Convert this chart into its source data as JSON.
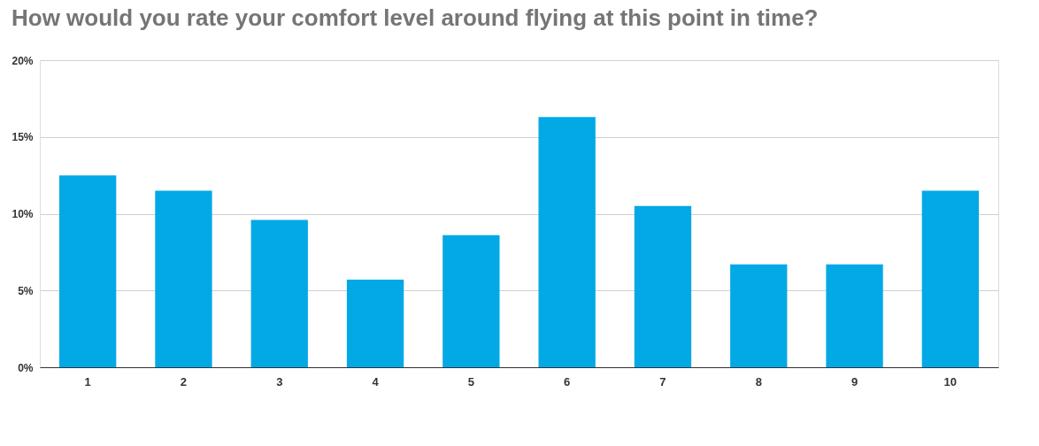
{
  "chart_data": {
    "type": "bar",
    "title": "How would you rate your comfort level around flying at this point in time?",
    "categories": [
      "1",
      "2",
      "3",
      "4",
      "5",
      "6",
      "7",
      "8",
      "9",
      "10"
    ],
    "values": [
      12.5,
      11.5,
      9.6,
      5.7,
      8.6,
      16.3,
      10.5,
      6.7,
      6.7,
      11.5
    ],
    "color": "#03a9e4",
    "ylim": [
      0,
      20
    ],
    "yticks": [
      {
        "value": 0,
        "label": "0%"
      },
      {
        "value": 5,
        "label": "5%"
      },
      {
        "value": 10,
        "label": "10%"
      },
      {
        "value": 15,
        "label": "15%"
      },
      {
        "value": 20,
        "label": "20%"
      }
    ],
    "grid": "y"
  }
}
